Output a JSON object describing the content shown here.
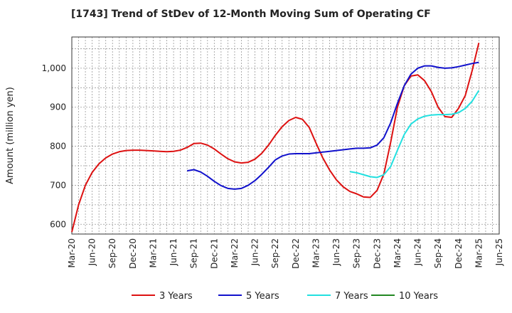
{
  "chart_data": {
    "type": "line",
    "title": "[1743]  Trend of StDev of 12-Month Moving Sum of Operating CF",
    "xlabel": "",
    "ylabel": "Amount (million yen)",
    "ylim": [
      575,
      1080
    ],
    "y_ticks": [
      600,
      700,
      800,
      900,
      1000
    ],
    "y_tick_labels": [
      "600",
      "700",
      "800",
      "900",
      "1,000"
    ],
    "x_range": [
      "Mar-20",
      "Jun-25"
    ],
    "x_tick_labels": [
      "Mar-20",
      "Jun-20",
      "Sep-20",
      "Dec-20",
      "Mar-21",
      "Jun-21",
      "Sep-21",
      "Dec-21",
      "Mar-22",
      "Jun-22",
      "Sep-22",
      "Dec-22",
      "Mar-23",
      "Jun-23",
      "Sep-23",
      "Dec-23",
      "Mar-24",
      "Jun-24",
      "Sep-24",
      "Dec-24",
      "Mar-25",
      "Jun-25"
    ],
    "grid": true,
    "legend_position": "bottom",
    "series": [
      {
        "name": "3 Years",
        "color": "#dd1111",
        "x": [
          "Mar-20",
          "Apr-20",
          "May-20",
          "Jun-20",
          "Jul-20",
          "Aug-20",
          "Sep-20",
          "Oct-20",
          "Nov-20",
          "Dec-20",
          "Jan-21",
          "Feb-21",
          "Mar-21",
          "Apr-21",
          "May-21",
          "Jun-21",
          "Jul-21",
          "Aug-21",
          "Sep-21",
          "Oct-21",
          "Nov-21",
          "Dec-21",
          "Jan-22",
          "Feb-22",
          "Mar-22",
          "Apr-22",
          "May-22",
          "Jun-22",
          "Jul-22",
          "Aug-22",
          "Sep-22",
          "Oct-22",
          "Nov-22",
          "Dec-22",
          "Jan-23",
          "Feb-23",
          "Mar-23",
          "Apr-23",
          "May-23",
          "Jun-23",
          "Jul-23",
          "Aug-23",
          "Sep-23",
          "Oct-23",
          "Nov-23",
          "Dec-23",
          "Jan-24",
          "Feb-24",
          "Mar-24",
          "Apr-24",
          "May-24",
          "Jun-24",
          "Jul-24",
          "Aug-24",
          "Sep-24",
          "Oct-24",
          "Nov-24",
          "Dec-24",
          "Jan-25",
          "Feb-25",
          "Mar-25"
        ],
        "values": [
          580,
          650,
          700,
          733,
          755,
          770,
          780,
          786,
          789,
          790,
          790,
          789,
          788,
          787,
          786,
          787,
          790,
          797,
          807,
          808,
          803,
          793,
          780,
          768,
          760,
          757,
          759,
          767,
          782,
          803,
          828,
          850,
          866,
          874,
          869,
          848,
          808,
          770,
          739,
          714,
          696,
          684,
          678,
          670,
          669,
          687,
          729,
          810,
          900,
          955,
          980,
          983,
          968,
          940,
          900,
          876,
          874,
          897,
          930,
          993,
          1065
        ]
      },
      {
        "name": "5 Years",
        "color": "#1111cc",
        "x": [
          "Aug-21",
          "Sep-21",
          "Oct-21",
          "Nov-21",
          "Dec-21",
          "Jan-22",
          "Feb-22",
          "Mar-22",
          "Apr-22",
          "May-22",
          "Jun-22",
          "Jul-22",
          "Aug-22",
          "Sep-22",
          "Oct-22",
          "Nov-22",
          "Dec-22",
          "Jan-23",
          "Feb-23",
          "Mar-23",
          "Apr-23",
          "May-23",
          "Jun-23",
          "Jul-23",
          "Aug-23",
          "Sep-23",
          "Oct-23",
          "Nov-23",
          "Dec-23",
          "Jan-24",
          "Feb-24",
          "Mar-24",
          "Apr-24",
          "May-24",
          "Jun-24",
          "Jul-24",
          "Aug-24",
          "Sep-24",
          "Oct-24",
          "Nov-24",
          "Dec-24",
          "Jan-25",
          "Feb-25",
          "Mar-25"
        ],
        "values": [
          737,
          740,
          734,
          723,
          710,
          699,
          692,
          690,
          692,
          700,
          712,
          728,
          746,
          765,
          775,
          780,
          781,
          781,
          781,
          783,
          785,
          787,
          789,
          791,
          793,
          795,
          795,
          796,
          803,
          822,
          860,
          910,
          955,
          985,
          1000,
          1006,
          1006,
          1002,
          1000,
          1001,
          1004,
          1008,
          1012,
          1015
        ]
      },
      {
        "name": "7 Years",
        "color": "#22e0e0",
        "x": [
          "Aug-23",
          "Sep-23",
          "Oct-23",
          "Nov-23",
          "Dec-23",
          "Jan-24",
          "Feb-24",
          "Mar-24",
          "Apr-24",
          "May-24",
          "Jun-24",
          "Jul-24",
          "Aug-24",
          "Sep-24",
          "Oct-24",
          "Nov-24",
          "Dec-24",
          "Jan-25",
          "Feb-25",
          "Mar-25"
        ],
        "values": [
          735,
          732,
          727,
          722,
          720,
          727,
          748,
          790,
          830,
          857,
          870,
          877,
          880,
          881,
          881,
          882,
          886,
          897,
          915,
          943
        ]
      },
      {
        "name": "10 Years",
        "color": "#228822",
        "x": [],
        "values": []
      }
    ]
  }
}
